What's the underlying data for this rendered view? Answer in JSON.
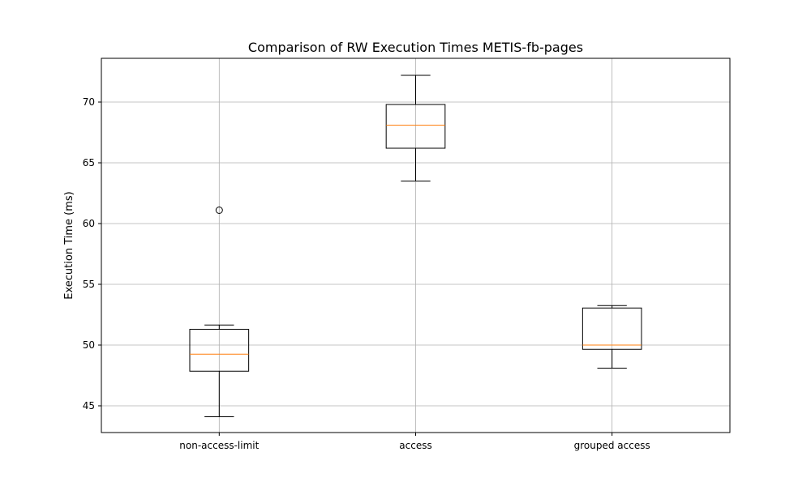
{
  "chart_data": {
    "type": "boxplot",
    "title": "Comparison of RW Execution Times METIS-fb-pages",
    "xlabel": "",
    "ylabel": "Execution Time (ms)",
    "ylim": [
      42.8,
      73.6
    ],
    "yticks": [
      45,
      50,
      55,
      60,
      65,
      70
    ],
    "grid": true,
    "categories": [
      "non-access-limit",
      "access",
      "grouped access"
    ],
    "boxes": [
      {
        "whisker_low": 44.1,
        "q1": 47.85,
        "median": 49.25,
        "q3": 51.3,
        "whisker_high": 51.65,
        "outliers": [
          61.1
        ]
      },
      {
        "whisker_low": 63.5,
        "q1": 66.2,
        "median": 68.1,
        "q3": 69.8,
        "whisker_high": 72.2,
        "outliers": []
      },
      {
        "whisker_low": 48.1,
        "q1": 49.65,
        "median": 50.0,
        "q3": 53.05,
        "whisker_high": 53.25,
        "outliers": []
      }
    ],
    "colors": {
      "box": "#000000",
      "median": "#ff7f0e",
      "grid": "#b0b0b0"
    }
  }
}
